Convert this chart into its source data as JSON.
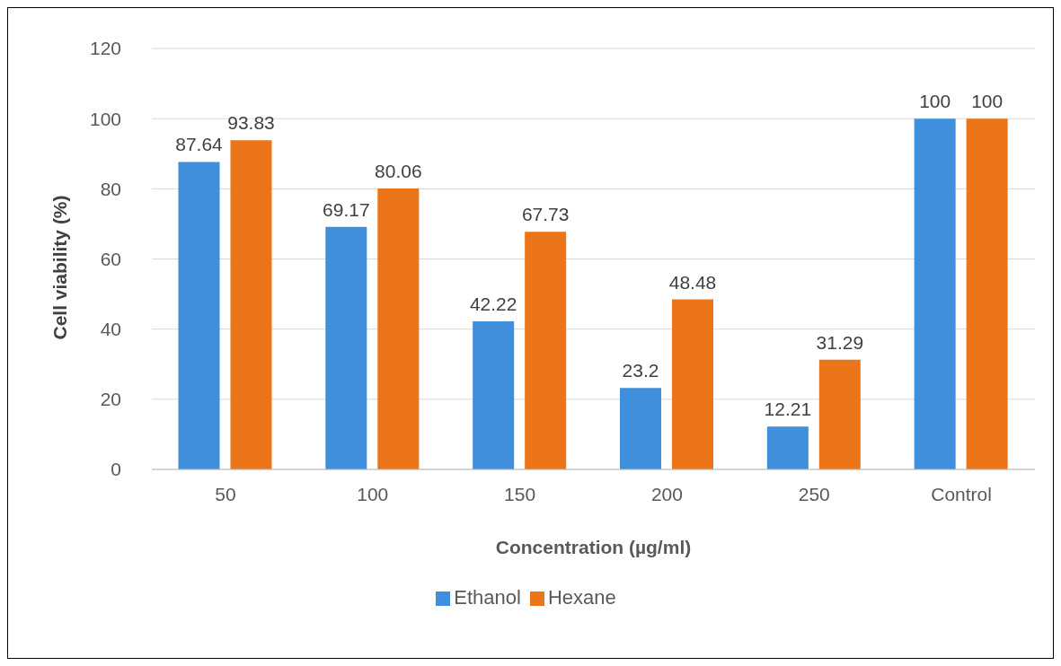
{
  "chart_data": {
    "type": "bar",
    "xlabel": "Concentration  (µg/ml)",
    "ylabel": "Cell viability (%)",
    "categories": [
      "50",
      "100",
      "150",
      "200",
      "250",
      "Control"
    ],
    "series": [
      {
        "name": "Ethanol",
        "color": "#3f8fdc",
        "values": [
          87.64,
          69.17,
          42.22,
          23.2,
          12.21,
          100
        ]
      },
      {
        "name": "Hexane",
        "color": "#ec7419",
        "values": [
          93.83,
          80.06,
          67.73,
          48.48,
          31.29,
          100
        ]
      }
    ],
    "ylim": [
      0,
      120
    ],
    "yticks": [
      0,
      20,
      40,
      60,
      80,
      100,
      120
    ],
    "grid": "y",
    "legend": "bottom",
    "data_labels": true
  }
}
